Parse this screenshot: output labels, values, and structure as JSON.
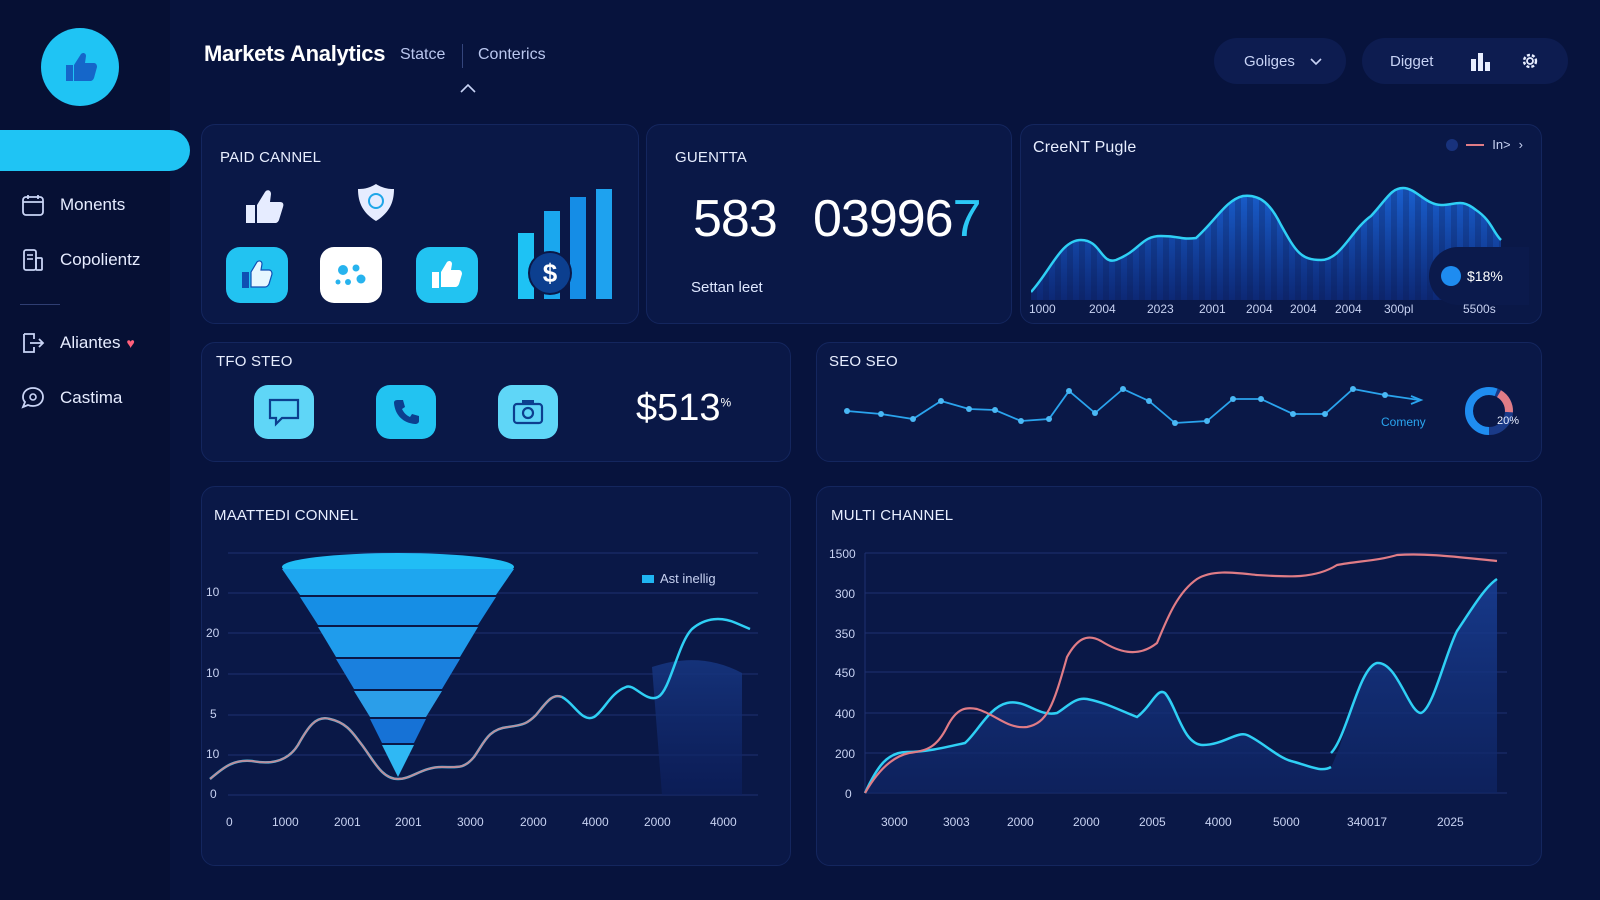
{
  "app": {
    "title": "Markets Analytics",
    "tabs": [
      "Statce",
      "Conterics"
    ]
  },
  "sidebar": {
    "items": [
      {
        "label": "Monents",
        "icon": "calendar-icon"
      },
      {
        "label": "Copolientz",
        "icon": "document-icon"
      },
      {
        "label": "Aliantes",
        "icon": "share-icon"
      },
      {
        "label": "Castima",
        "icon": "chat-icon"
      }
    ]
  },
  "toolbar": {
    "dropdown_label": "Goliges",
    "digest_label": "Digget"
  },
  "cards": {
    "paid_channel": {
      "title": "PAID CANNEL"
    },
    "quantity": {
      "title": "GUENTTA",
      "value_a": "583",
      "value_b_main": "03996",
      "value_b_accent": "7",
      "caption": "Settan leet"
    },
    "current": {
      "title": "CreeNT Pugle",
      "legend": "In>",
      "badge": "$18%",
      "x_labels": [
        "1000",
        "2004",
        "2023",
        "2001",
        "2004",
        "2004",
        "2004",
        "300pl",
        "5500s"
      ]
    },
    "tfo": {
      "title": "TFO STEO",
      "value": "$513",
      "sup": "%"
    },
    "seo": {
      "title": "SEO SEO",
      "legend": "Comeny",
      "donut_label": "20%"
    },
    "funnel": {
      "title": "MAATTEDI CONNEL",
      "legend": "Ast inellig",
      "y_labels": [
        "10",
        "20",
        "10",
        "5",
        "10",
        "0"
      ],
      "x_labels": [
        "0",
        "1000",
        "2001",
        "2001",
        "3000",
        "2000",
        "4000",
        "2000",
        "4000"
      ]
    },
    "multi": {
      "title": "MULTI CHANNEL",
      "y_labels": [
        "1500",
        "300",
        "350",
        "450",
        "400",
        "200",
        "0"
      ],
      "x_labels": [
        "3000",
        "3003",
        "2000",
        "2000",
        "2005",
        "4000",
        "5000",
        "340017",
        "2025"
      ]
    }
  },
  "colors": {
    "background": "#07133d",
    "accent": "#1fc4f4",
    "card": "#0a1847",
    "series_red": "#e07c86",
    "series_cyan": "#2fd0f5"
  }
}
